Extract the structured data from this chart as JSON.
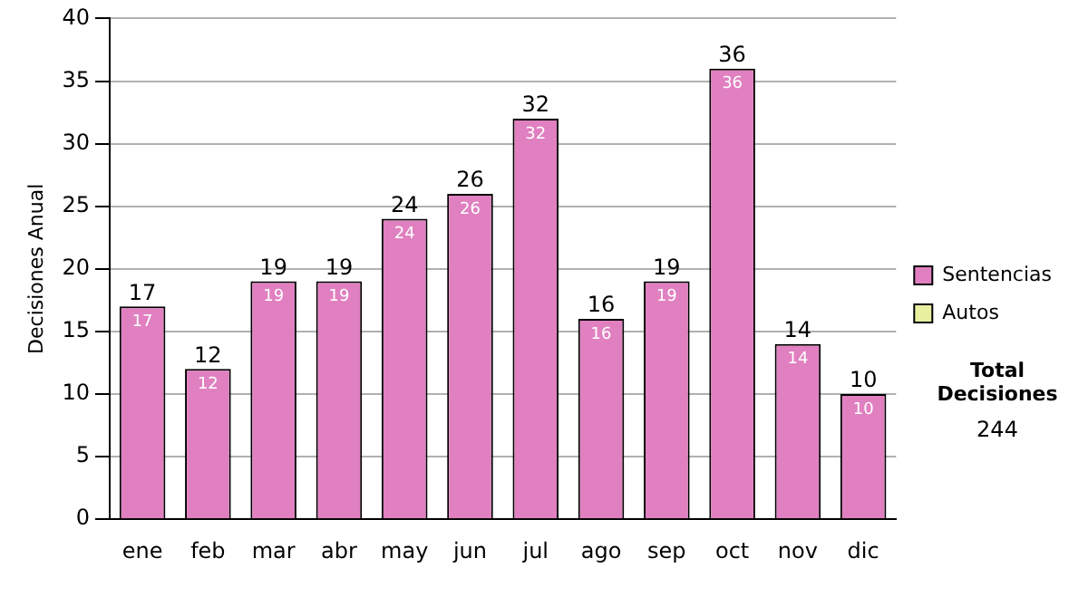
{
  "chart_data": {
    "type": "bar",
    "ylabel": "Decisiones Anual",
    "categories": [
      "ene",
      "feb",
      "mar",
      "abr",
      "may",
      "jun",
      "jul",
      "ago",
      "sep",
      "oct",
      "nov",
      "dic"
    ],
    "series": [
      {
        "name": "Sentencias",
        "color": "#e080c0",
        "values": [
          17,
          12,
          19,
          19,
          24,
          26,
          32,
          16,
          19,
          36,
          14,
          10
        ]
      },
      {
        "name": "Autos",
        "color": "#e8f0a0",
        "values": [
          null,
          null,
          null,
          null,
          null,
          null,
          null,
          null,
          null,
          null,
          null,
          null
        ]
      }
    ],
    "ylim": [
      0,
      40
    ],
    "yticks": [
      0,
      5,
      10,
      15,
      20,
      25,
      30,
      35,
      40
    ],
    "grid": "y",
    "legend": "right",
    "data_labels": true,
    "totals": [
      "17",
      "12",
      "19",
      "19",
      "24",
      "26",
      "32",
      "16",
      "19",
      "36",
      "14",
      "10"
    ],
    "annotations": [
      "Total Decisiones",
      "244"
    ]
  }
}
